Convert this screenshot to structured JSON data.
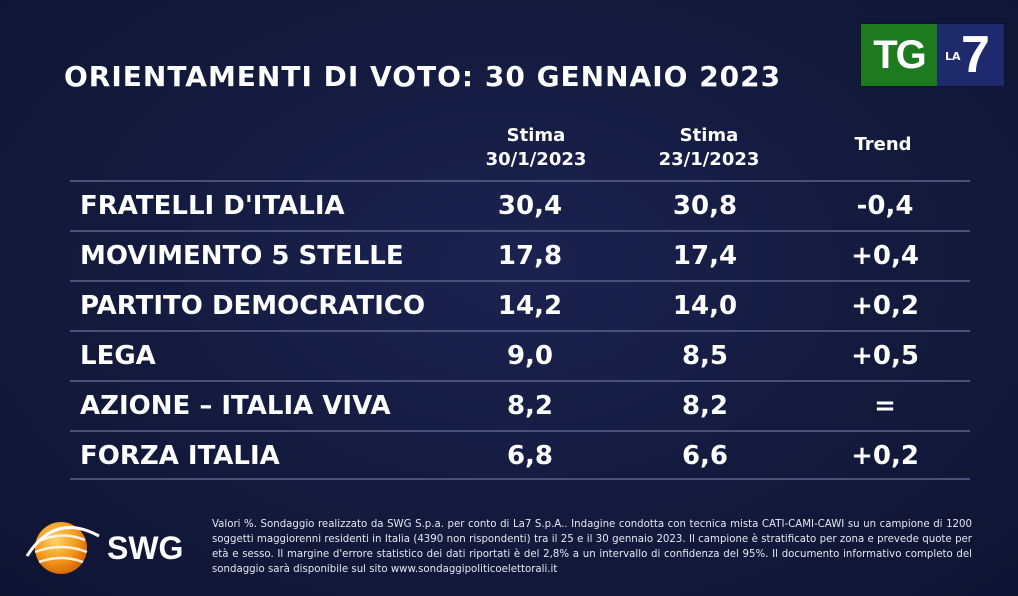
{
  "title": "ORIENTAMENTI DI VOTO: 30 GENNAIO 2023",
  "logo": {
    "tg": "TG",
    "la": "LA",
    "seven": "7"
  },
  "columns": {
    "stima1_line1": "Stima",
    "stima1_line2": "30/1/2023",
    "stima2_line1": "Stima",
    "stima2_line2": "23/1/2023",
    "trend": "Trend"
  },
  "rows": [
    {
      "party": "FRATELLI D'ITALIA",
      "v1": "30,4",
      "v2": "30,8",
      "trend": "-0,4"
    },
    {
      "party": "MOVIMENTO 5 STELLE",
      "v1": "17,8",
      "v2": "17,4",
      "trend": "+0,4"
    },
    {
      "party": "PARTITO DEMOCRATICO",
      "v1": "14,2",
      "v2": "14,0",
      "trend": "+0,2"
    },
    {
      "party": "LEGA",
      "v1": "9,0",
      "v2": "8,5",
      "trend": "+0,5"
    },
    {
      "party": "AZIONE – ITALIA VIVA",
      "v1": "8,2",
      "v2": "8,2",
      "trend": "="
    },
    {
      "party": "FORZA ITALIA",
      "v1": "6,8",
      "v2": "6,6",
      "trend": "+0,2"
    }
  ],
  "swg": "SWG",
  "footnote": "Valori %. Sondaggio realizzato da SWG S.p.a. per conto di La7 S.p.A.. Indagine condotta con tecnica mista CATI-CAMI-CAWI su un campione di 1200 soggetti maggiorenni residenti in Italia (4390 non rispondenti) tra il 25 e il 30 gennaio 2023. Il campione è stratificato per zona e prevede quote per età e sesso. Il margine d'errore statistico dei dati riportati è del 2,8% a un intervallo di confidenza del 95%. Il documento informativo completo del sondaggio sarà disponibile sul sito www.sondaggipoliticoelettorali.it",
  "chart_data": {
    "type": "table",
    "title": "ORIENTAMENTI DI VOTO: 30 GENNAIO 2023",
    "columns": [
      "Stima 30/1/2023",
      "Stima 23/1/2023",
      "Trend"
    ],
    "categories": [
      "FRATELLI D'ITALIA",
      "MOVIMENTO 5 STELLE",
      "PARTITO DEMOCRATICO",
      "LEGA",
      "AZIONE – ITALIA VIVA",
      "FORZA ITALIA"
    ],
    "series": [
      {
        "name": "Stima 30/1/2023",
        "values": [
          30.4,
          17.8,
          14.2,
          9.0,
          8.2,
          6.8
        ]
      },
      {
        "name": "Stima 23/1/2023",
        "values": [
          30.8,
          17.4,
          14.0,
          8.5,
          8.2,
          6.6
        ]
      },
      {
        "name": "Trend",
        "values": [
          -0.4,
          0.4,
          0.2,
          0.5,
          0.0,
          0.2
        ]
      }
    ]
  }
}
